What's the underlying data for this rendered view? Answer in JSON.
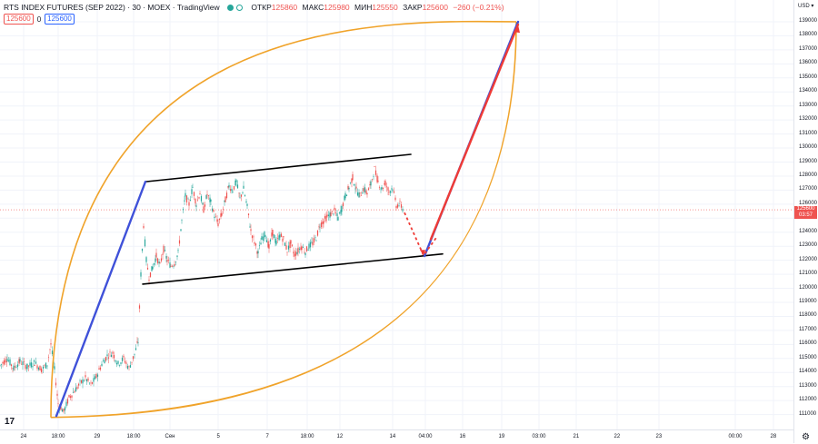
{
  "header": {
    "title": "RTS INDEX FUTURES (SEP 2022) · 30 · MOEX · TradingView",
    "open_label": "ОТКР",
    "open_value": "125860",
    "high_label": "МАКС",
    "high_value": "125980",
    "low_label": "МИН",
    "low_value": "125550",
    "close_label": "ЗАКР",
    "close_value": "125600",
    "change_value": "−260 (−0.21%)"
  },
  "inputs": {
    "left_value": "125600",
    "middle_value": "0",
    "right_value": "125600"
  },
  "price_axis": {
    "currency": "USD ▾",
    "ticks": [
      "139000",
      "138000",
      "137000",
      "136000",
      "135000",
      "134000",
      "133000",
      "132000",
      "131000",
      "130000",
      "129000",
      "128000",
      "127000",
      "126000",
      "125000",
      "124000",
      "123000",
      "122000",
      "121000",
      "120000",
      "119000",
      "118000",
      "117000",
      "116000",
      "115000",
      "114000",
      "113000",
      "112000",
      "111000"
    ],
    "current_price": "125600",
    "countdown": "03:57"
  },
  "time_axis": {
    "ticks": [
      "24",
      "18:00",
      "29",
      "18:00",
      "Сен",
      "5",
      "7",
      "18:00",
      "12",
      "14",
      "04:00",
      "16",
      "19",
      "03:00",
      "21",
      "22",
      "23",
      "00:00",
      "28"
    ]
  },
  "colors": {
    "up": "#26a69a",
    "down": "#ef5350",
    "blue_line": "#3f51d9",
    "red_line": "#ef3b36",
    "orange_curve": "#f0a32a",
    "channel": "#000000"
  },
  "icons": {
    "logo": "tradingview-logo-icon",
    "settings": "gear-icon"
  },
  "chart_data": {
    "type": "candlestick",
    "title": "RTS INDEX FUTURES (SEP 2022) · 30 · MOEX · TradingView",
    "ylim": [
      110500,
      140500
    ],
    "y_ticks": [
      111000,
      112000,
      113000,
      114000,
      115000,
      116000,
      117000,
      118000,
      119000,
      120000,
      121000,
      122000,
      123000,
      124000,
      125000,
      126000,
      127000,
      128000,
      129000,
      130000,
      131000,
      132000,
      133000,
      134000,
      135000,
      136000,
      137000,
      138000,
      139000
    ],
    "x_tick_labels": [
      "24",
      "18:00",
      "29",
      "18:00",
      "Сен",
      "5",
      "7",
      "18:00",
      "12",
      "14",
      "04:00",
      "16",
      "19",
      "03:00",
      "21",
      "22",
      "23",
      "00:00",
      "28"
    ],
    "current_price": 125600,
    "ohlc_last": {
      "open": 125860,
      "high": 125980,
      "low": 125550,
      "close": 125600,
      "change": -260,
      "change_pct": -0.21
    },
    "price_path": [
      [
        0,
        114500
      ],
      [
        8,
        115000
      ],
      [
        15,
        114300
      ],
      [
        22,
        114800
      ],
      [
        30,
        114400
      ],
      [
        38,
        114700
      ],
      [
        46,
        114200
      ],
      [
        52,
        114600
      ],
      [
        56,
        116000
      ],
      [
        60,
        114200
      ],
      [
        64,
        111800
      ],
      [
        70,
        111200
      ],
      [
        76,
        112200
      ],
      [
        82,
        112700
      ],
      [
        88,
        113200
      ],
      [
        94,
        113600
      ],
      [
        100,
        113100
      ],
      [
        106,
        113700
      ],
      [
        112,
        114600
      ],
      [
        118,
        115200
      ],
      [
        124,
        115400
      ],
      [
        130,
        114600
      ],
      [
        136,
        115000
      ],
      [
        142,
        114300
      ],
      [
        148,
        115300
      ],
      [
        152,
        116200
      ],
      [
        155,
        121000
      ],
      [
        158,
        124500
      ],
      [
        161,
        122000
      ],
      [
        164,
        120800
      ],
      [
        168,
        121500
      ],
      [
        172,
        122300
      ],
      [
        176,
        121600
      ],
      [
        180,
        122800
      ],
      [
        184,
        122000
      ],
      [
        188,
        121600
      ],
      [
        192,
        121800
      ],
      [
        196,
        122500
      ],
      [
        200,
        124800
      ],
      [
        204,
        126600
      ],
      [
        208,
        126000
      ],
      [
        212,
        127200
      ],
      [
        216,
        126000
      ],
      [
        220,
        126800
      ],
      [
        224,
        125600
      ],
      [
        228,
        126700
      ],
      [
        232,
        126100
      ],
      [
        236,
        125200
      ],
      [
        240,
        124600
      ],
      [
        244,
        125300
      ],
      [
        248,
        126300
      ],
      [
        252,
        127300
      ],
      [
        256,
        127000
      ],
      [
        260,
        127600
      ],
      [
        264,
        126400
      ],
      [
        268,
        127100
      ],
      [
        272,
        125800
      ],
      [
        276,
        124100
      ],
      [
        280,
        123300
      ],
      [
        284,
        122500
      ],
      [
        288,
        123500
      ],
      [
        292,
        123900
      ],
      [
        296,
        122900
      ],
      [
        300,
        124000
      ],
      [
        304,
        123200
      ],
      [
        308,
        123800
      ],
      [
        312,
        123500
      ],
      [
        316,
        122700
      ],
      [
        320,
        123200
      ],
      [
        324,
        122400
      ],
      [
        328,
        122700
      ],
      [
        332,
        123000
      ],
      [
        336,
        122600
      ],
      [
        340,
        123000
      ],
      [
        344,
        123200
      ],
      [
        348,
        123600
      ],
      [
        352,
        124500
      ],
      [
        356,
        124800
      ],
      [
        360,
        125100
      ],
      [
        364,
        125300
      ],
      [
        368,
        125500
      ],
      [
        372,
        125000
      ],
      [
        376,
        125700
      ],
      [
        380,
        126600
      ],
      [
        384,
        127200
      ],
      [
        388,
        127900
      ],
      [
        392,
        127000
      ],
      [
        396,
        126600
      ],
      [
        400,
        127100
      ],
      [
        404,
        126800
      ],
      [
        408,
        127400
      ],
      [
        412,
        128500
      ],
      [
        416,
        127600
      ],
      [
        420,
        127100
      ],
      [
        424,
        127500
      ],
      [
        428,
        126900
      ],
      [
        432,
        127200
      ],
      [
        436,
        125900
      ],
      [
        440,
        126000
      ],
      [
        444,
        125600
      ]
    ],
    "annotations": {
      "channel_upper": [
        [
          160,
          127600
        ],
        [
          452,
          129550
        ]
      ],
      "channel_lower": [
        [
          157,
          120300
        ],
        [
          487,
          122450
        ]
      ],
      "blue_impulse_1": [
        [
          62,
          110900
        ],
        [
          160,
          127600
        ]
      ],
      "blue_impulse_2": [
        [
          467,
          122300
        ],
        [
          570,
          139000
        ]
      ],
      "red_projection": [
        [
          474,
          123500
        ],
        [
          570,
          138800
        ]
      ],
      "red_dashed": [
        [
          445,
          125400
        ],
        [
          466,
          122350
        ],
        [
          481,
          123700
        ]
      ],
      "orange_curves": [
        [
          [
            56,
            110800
          ],
          [
            568,
            139000
          ]
        ],
        [
          [
            56,
            110800
          ],
          [
            568,
            139000
          ]
        ]
      ]
    }
  }
}
